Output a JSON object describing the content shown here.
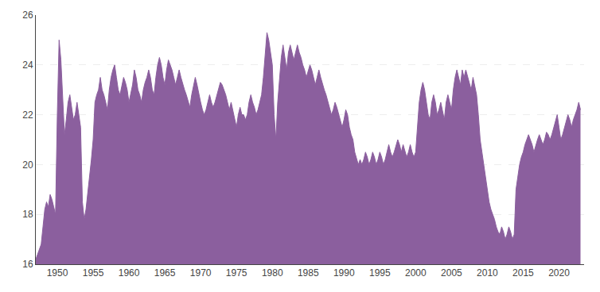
{
  "chart_data": {
    "type": "area",
    "x": [
      1947.0,
      1947.25,
      1947.5,
      1947.75,
      1948.0,
      1948.25,
      1948.5,
      1948.75,
      1949.0,
      1949.25,
      1949.5,
      1949.75,
      1950.0,
      1950.25,
      1950.5,
      1950.75,
      1951.0,
      1951.25,
      1951.5,
      1951.75,
      1952.0,
      1952.25,
      1952.5,
      1952.75,
      1953.0,
      1953.25,
      1953.5,
      1953.75,
      1954.0,
      1954.25,
      1954.5,
      1954.75,
      1955.0,
      1955.25,
      1955.5,
      1955.75,
      1956.0,
      1956.25,
      1956.5,
      1956.75,
      1957.0,
      1957.25,
      1957.5,
      1957.75,
      1958.0,
      1958.25,
      1958.5,
      1958.75,
      1959.0,
      1959.25,
      1959.5,
      1959.75,
      1960.0,
      1960.25,
      1960.5,
      1960.75,
      1961.0,
      1961.25,
      1961.5,
      1961.75,
      1962.0,
      1962.25,
      1962.5,
      1962.75,
      1963.0,
      1963.25,
      1963.5,
      1963.75,
      1964.0,
      1964.25,
      1964.5,
      1964.75,
      1965.0,
      1965.25,
      1965.5,
      1965.75,
      1966.0,
      1966.25,
      1966.5,
      1966.75,
      1967.0,
      1967.25,
      1967.5,
      1967.75,
      1968.0,
      1968.25,
      1968.5,
      1968.75,
      1969.0,
      1969.25,
      1969.5,
      1969.75,
      1970.0,
      1970.25,
      1970.5,
      1970.75,
      1971.0,
      1971.25,
      1971.5,
      1971.75,
      1972.0,
      1972.25,
      1972.5,
      1972.75,
      1973.0,
      1973.25,
      1973.5,
      1973.75,
      1974.0,
      1974.25,
      1974.5,
      1974.75,
      1975.0,
      1975.25,
      1975.5,
      1975.75,
      1976.0,
      1976.25,
      1976.5,
      1976.75,
      1977.0,
      1977.25,
      1977.5,
      1977.75,
      1978.0,
      1978.25,
      1978.5,
      1978.75,
      1979.0,
      1979.25,
      1979.5,
      1979.75,
      1980.0,
      1980.25,
      1980.5,
      1980.75,
      1981.0,
      1981.25,
      1981.5,
      1981.75,
      1982.0,
      1982.25,
      1982.5,
      1982.75,
      1983.0,
      1983.25,
      1983.5,
      1983.75,
      1984.0,
      1984.25,
      1984.5,
      1984.75,
      1985.0,
      1985.25,
      1985.5,
      1985.75,
      1986.0,
      1986.25,
      1986.5,
      1986.75,
      1987.0,
      1987.25,
      1987.5,
      1987.75,
      1988.0,
      1988.25,
      1988.5,
      1988.75,
      1989.0,
      1989.25,
      1989.5,
      1989.75,
      1990.0,
      1990.25,
      1990.5,
      1990.75,
      1991.0,
      1991.25,
      1991.5,
      1991.75,
      1992.0,
      1992.25,
      1992.5,
      1992.75,
      1993.0,
      1993.25,
      1993.5,
      1993.75,
      1994.0,
      1994.25,
      1994.5,
      1994.75,
      1995.0,
      1995.25,
      1995.5,
      1995.75,
      1996.0,
      1996.25,
      1996.5,
      1996.75,
      1997.0,
      1997.25,
      1997.5,
      1997.75,
      1998.0,
      1998.25,
      1998.5,
      1998.75,
      1999.0,
      1999.25,
      1999.5,
      1999.75,
      2000.0,
      2000.25,
      2000.5,
      2000.75,
      2001.0,
      2001.25,
      2001.5,
      2001.75,
      2002.0,
      2002.25,
      2002.5,
      2002.75,
      2003.0,
      2003.25,
      2003.5,
      2003.75,
      2004.0,
      2004.25,
      2004.5,
      2004.75,
      2005.0,
      2005.25,
      2005.5,
      2005.75,
      2006.0,
      2006.25,
      2006.5,
      2006.75,
      2007.0,
      2007.25,
      2007.5,
      2007.75,
      2008.0,
      2008.25,
      2008.5,
      2008.75,
      2009.0,
      2009.25,
      2009.5,
      2009.75,
      2010.0,
      2010.25,
      2010.5,
      2010.75,
      2011.0,
      2011.25,
      2011.5,
      2011.75,
      2012.0,
      2012.25,
      2012.5,
      2012.75,
      2013.0,
      2013.25,
      2013.5,
      2013.75,
      2014.0,
      2014.25,
      2014.5,
      2014.75,
      2015.0,
      2015.25,
      2015.5,
      2015.75,
      2016.0,
      2016.25,
      2016.5,
      2016.75,
      2017.0,
      2017.25,
      2017.5,
      2017.75,
      2018.0,
      2018.25,
      2018.5,
      2018.75,
      2019.0,
      2019.25,
      2019.5,
      2019.75,
      2020.0,
      2020.25,
      2020.5,
      2020.75,
      2021.0,
      2021.25,
      2021.5,
      2021.75,
      2022.0,
      2022.25,
      2022.5,
      2022.75,
      2023.0
    ],
    "values": [
      16.2,
      16.4,
      16.6,
      16.8,
      17.5,
      18.2,
      18.5,
      18.3,
      18.8,
      18.6,
      18.3,
      18.0,
      22.0,
      25.0,
      24.2,
      22.5,
      21.2,
      21.8,
      22.5,
      22.8,
      22.3,
      21.8,
      22.0,
      22.5,
      22.0,
      21.5,
      18.5,
      17.8,
      18.2,
      18.8,
      19.5,
      20.2,
      21.0,
      22.5,
      22.8,
      23.0,
      23.5,
      23.0,
      22.8,
      22.5,
      22.2,
      23.0,
      23.5,
      23.8,
      24.0,
      23.5,
      23.0,
      22.8,
      23.2,
      23.5,
      23.3,
      23.0,
      22.5,
      22.8,
      23.2,
      23.8,
      23.5,
      23.0,
      22.8,
      22.5,
      23.0,
      23.3,
      23.5,
      23.8,
      23.5,
      23.0,
      22.8,
      23.5,
      24.0,
      24.3,
      24.0,
      23.5,
      23.2,
      23.8,
      24.2,
      24.0,
      23.8,
      23.5,
      23.2,
      23.5,
      23.8,
      23.5,
      23.2,
      23.0,
      22.8,
      22.5,
      22.3,
      22.8,
      23.2,
      23.5,
      23.2,
      22.8,
      22.5,
      22.2,
      22.0,
      22.2,
      22.5,
      22.8,
      22.5,
      22.3,
      22.5,
      22.8,
      23.0,
      23.3,
      23.2,
      23.0,
      22.8,
      22.5,
      22.2,
      22.5,
      22.2,
      21.8,
      21.5,
      22.0,
      22.3,
      22.0,
      22.0,
      21.8,
      22.0,
      22.5,
      22.8,
      22.5,
      22.3,
      22.0,
      22.2,
      22.5,
      22.8,
      23.5,
      24.5,
      25.3,
      25.0,
      24.5,
      24.0,
      22.0,
      21.0,
      22.5,
      23.5,
      24.3,
      24.8,
      24.3,
      23.8,
      24.5,
      24.8,
      24.5,
      24.2,
      24.5,
      24.8,
      24.5,
      24.3,
      24.0,
      23.8,
      23.5,
      23.8,
      24.0,
      23.8,
      23.5,
      23.2,
      23.5,
      23.8,
      23.5,
      23.2,
      23.0,
      22.8,
      22.5,
      22.3,
      22.0,
      22.2,
      22.5,
      22.3,
      22.0,
      21.8,
      21.5,
      21.8,
      22.2,
      22.0,
      21.5,
      21.2,
      21.0,
      20.5,
      20.2,
      20.0,
      20.2,
      20.0,
      20.2,
      20.5,
      20.3,
      20.0,
      20.2,
      20.5,
      20.3,
      20.0,
      20.2,
      20.5,
      20.3,
      20.0,
      20.2,
      20.5,
      20.8,
      20.5,
      20.3,
      20.5,
      20.8,
      21.0,
      20.8,
      20.5,
      20.8,
      20.5,
      20.3,
      20.5,
      20.8,
      20.5,
      20.3,
      20.5,
      21.5,
      22.5,
      23.0,
      23.3,
      23.0,
      22.5,
      22.0,
      21.8,
      22.5,
      22.8,
      22.5,
      22.0,
      22.2,
      22.5,
      22.2,
      21.8,
      22.5,
      22.8,
      22.5,
      22.2,
      23.0,
      23.5,
      23.8,
      23.5,
      23.2,
      23.8,
      23.5,
      23.8,
      23.5,
      23.2,
      23.0,
      23.5,
      23.2,
      22.8,
      22.0,
      21.0,
      20.5,
      20.0,
      19.5,
      19.0,
      18.5,
      18.2,
      18.0,
      17.8,
      17.5,
      17.3,
      17.2,
      17.5,
      17.3,
      17.0,
      17.2,
      17.5,
      17.3,
      17.0,
      17.2,
      19.0,
      19.5,
      20.0,
      20.3,
      20.5,
      20.8,
      21.0,
      21.2,
      21.0,
      20.8,
      20.5,
      20.8,
      21.0,
      21.2,
      21.0,
      20.8,
      21.0,
      21.3,
      21.2,
      21.0,
      21.2,
      21.5,
      21.8,
      22.0,
      21.5,
      21.0,
      21.2,
      21.5,
      21.8,
      22.0,
      21.8,
      21.5,
      21.8,
      22.0,
      22.2,
      22.5,
      22.2
    ],
    "color": "#8b5f9e",
    "xlim": [
      1947.0,
      2023.5
    ],
    "xticks": [
      1950,
      1955,
      1960,
      1965,
      1970,
      1975,
      1980,
      1985,
      1990,
      1995,
      2000,
      2005,
      2010,
      2015,
      2020
    ],
    "ylim": [
      16,
      26
    ],
    "yticks": [
      16,
      18,
      20,
      22,
      24,
      26
    ],
    "grid": true
  }
}
